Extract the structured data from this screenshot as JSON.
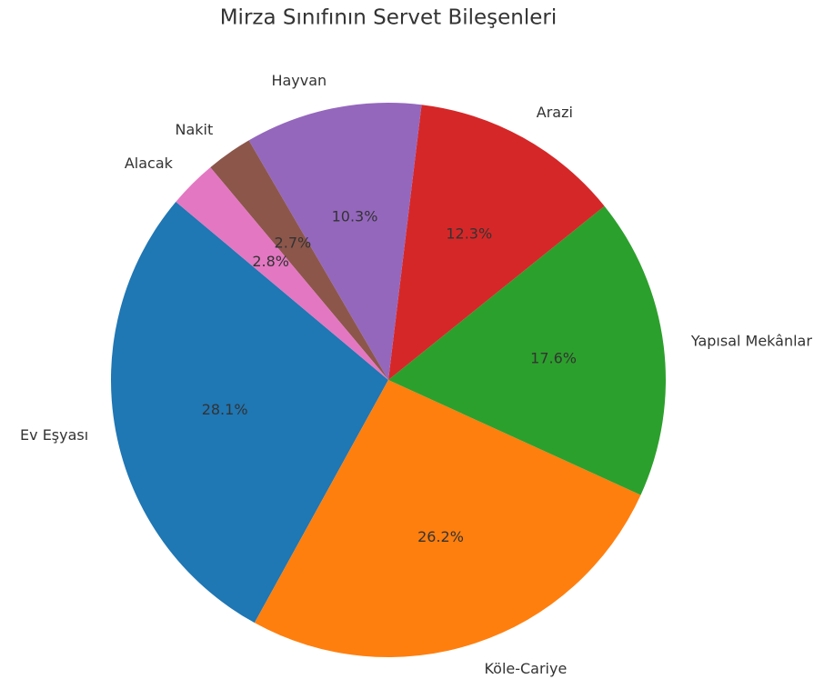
{
  "chart_data": {
    "type": "pie",
    "title": "Mirza Sınıfının Servet Bileşenleri",
    "categories": [
      "Ev Eşyası",
      "Köle-Cariye",
      "Yapısal Mekânlar",
      "Arazi",
      "Hayvan",
      "Nakit",
      "Alacak"
    ],
    "values": [
      28.1,
      26.2,
      17.6,
      12.3,
      10.3,
      2.7,
      2.8
    ],
    "value_labels": [
      "28.1%",
      "26.2%",
      "17.6%",
      "12.3%",
      "10.3%",
      "2.7%",
      "2.8%"
    ],
    "colors": [
      "#1f77b4",
      "#ff7f0e",
      "#2ca02c",
      "#d62728",
      "#9467bd",
      "#8c564b",
      "#e377c2"
    ]
  }
}
